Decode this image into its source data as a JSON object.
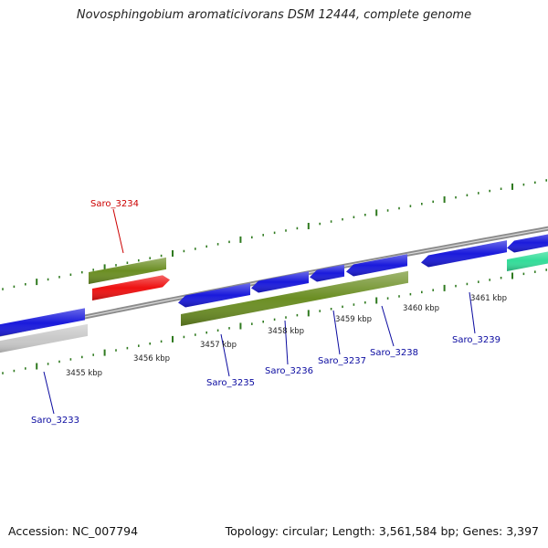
{
  "title": "Novosphingobium aromaticivorans DSM 12444, complete genome",
  "footer": {
    "accession": "Accession: NC_007794",
    "topology": "Topology: circular; Length: 3,561,584 bp; Genes: 3,397"
  },
  "colors": {
    "cds_blue": "#1a1adc",
    "gene_olive": "#6b8e23",
    "rrna_red": "#ee1111",
    "other_teal": "#33dd99",
    "pseudo_gray": "#c8c8c8",
    "backbone_gray": "#8c8c8c",
    "tick_green": "#2f7a1f",
    "label_blue": "#0a0aa0",
    "label_red": "#cc0000"
  },
  "axis": {
    "ticks": [
      {
        "label": "3455 kbp"
      },
      {
        "label": "3456 kbp"
      },
      {
        "label": "3457 kbp"
      },
      {
        "label": "3458 kbp"
      },
      {
        "label": "3459 kbp"
      },
      {
        "label": "3460 kbp"
      },
      {
        "label": "3461 kbp"
      }
    ]
  },
  "genes": [
    {
      "id": "Saro_3233",
      "strand": "-",
      "type": "CDS"
    },
    {
      "id": "Saro_3234",
      "strand": "+",
      "type": "rRNA"
    },
    {
      "id": "Saro_3235",
      "strand": "-",
      "type": "CDS"
    },
    {
      "id": "Saro_3236",
      "strand": "-",
      "type": "CDS"
    },
    {
      "id": "Saro_3237",
      "strand": "-",
      "type": "CDS"
    },
    {
      "id": "Saro_3238",
      "strand": "-",
      "type": "CDS"
    },
    {
      "id": "Saro_3239",
      "strand": "-",
      "type": "CDS"
    }
  ]
}
